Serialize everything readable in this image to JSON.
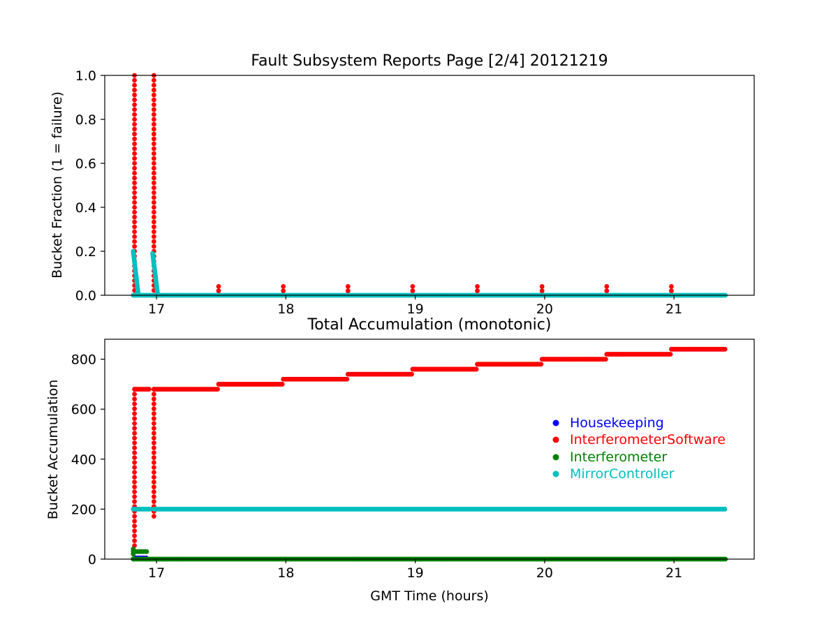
{
  "chart_data": [
    {
      "type": "scatter",
      "title": "Fault Subsystem Reports Page [2/4] 20121219",
      "xlabel": "",
      "ylabel": "Bucket Fraction (1 = failure)",
      "xlim": [
        16.6,
        21.62
      ],
      "ylim": [
        0,
        1.0
      ],
      "x_ticks": [
        17,
        18,
        19,
        20,
        21
      ],
      "y_ticks": [
        0.0,
        0.2,
        0.4,
        0.6,
        0.8,
        1.0
      ],
      "x_tick_labels": [
        "17",
        "18",
        "19",
        "20",
        "21"
      ],
      "y_tick_labels": [
        "0.0",
        "0.2",
        "0.4",
        "0.6",
        "0.8",
        "1.0"
      ],
      "grid": false,
      "series": [
        {
          "name": "InterferometerSoftware",
          "color": "#ff0000",
          "spikes": [
            {
              "x": 16.83,
              "peak": 1.0
            },
            {
              "x": 16.98,
              "peak": 1.0
            }
          ],
          "markers": [
            {
              "x": 17.48,
              "y": 0.04
            },
            {
              "x": 17.98,
              "y": 0.04
            },
            {
              "x": 18.48,
              "y": 0.04
            },
            {
              "x": 18.98,
              "y": 0.04
            },
            {
              "x": 19.48,
              "y": 0.04
            },
            {
              "x": 19.98,
              "y": 0.04
            },
            {
              "x": 20.48,
              "y": 0.04
            },
            {
              "x": 20.98,
              "y": 0.04
            }
          ],
          "baseline": 0.0
        },
        {
          "name": "MirrorController",
          "color": "#00bfbf",
          "decays": [
            {
              "x0": 16.82,
              "x1": 16.86,
              "peak": 0.2
            },
            {
              "x0": 16.97,
              "x1": 17.01,
              "peak": 0.19
            }
          ],
          "baseline_range": [
            16.82,
            21.4
          ],
          "baseline": 0.0
        }
      ]
    },
    {
      "type": "scatter",
      "title": "Total Accumulation (monotonic)",
      "xlabel": "GMT Time (hours)",
      "ylabel": "Bucket Accumulation",
      "xlim": [
        16.6,
        21.62
      ],
      "ylim": [
        0,
        880
      ],
      "x_ticks": [
        17,
        18,
        19,
        20,
        21
      ],
      "y_ticks": [
        0,
        200,
        400,
        600,
        800
      ],
      "x_tick_labels": [
        "17",
        "18",
        "19",
        "20",
        "21"
      ],
      "y_tick_labels": [
        "0",
        "200",
        "400",
        "600",
        "800"
      ],
      "grid": false,
      "legend_position": "center-right",
      "series": [
        {
          "name": "Housekeeping",
          "color": "#0000ff",
          "points": [
            [
              16.84,
              5
            ],
            [
              16.86,
              5
            ],
            [
              16.88,
              5
            ],
            [
              16.9,
              5
            ],
            [
              16.92,
              5
            ]
          ]
        },
        {
          "name": "InterferometerSoftware",
          "color": "#ff0000",
          "steps": [
            {
              "x0": 16.83,
              "x1": 16.95,
              "y": 680
            },
            {
              "x0": 16.98,
              "x1": 17.48,
              "y": 680
            },
            {
              "x0": 17.48,
              "x1": 17.98,
              "y": 700
            },
            {
              "x0": 17.98,
              "x1": 18.48,
              "y": 720
            },
            {
              "x0": 18.48,
              "x1": 18.98,
              "y": 740
            },
            {
              "x0": 18.98,
              "x1": 19.48,
              "y": 760
            },
            {
              "x0": 19.48,
              "x1": 19.98,
              "y": 780
            },
            {
              "x0": 19.98,
              "x1": 20.48,
              "y": 800
            },
            {
              "x0": 20.48,
              "x1": 20.98,
              "y": 820
            },
            {
              "x0": 20.98,
              "x1": 21.4,
              "y": 840
            }
          ],
          "ramps": [
            {
              "x": 16.83,
              "from": 40,
              "to": 680
            },
            {
              "x": 16.98,
              "from": 160,
              "to": 680
            }
          ]
        },
        {
          "name": "Interferometer",
          "color": "#008000",
          "steps": [
            {
              "x0": 16.82,
              "x1": 16.93,
              "y": 30
            },
            {
              "x0": 16.82,
              "x1": 21.4,
              "y": 0
            }
          ],
          "ramps": [
            {
              "x": 16.82,
              "from": 0,
              "to": 40
            }
          ]
        },
        {
          "name": "MirrorController",
          "color": "#00bfbf",
          "steps": [
            {
              "x0": 16.82,
              "x1": 16.95,
              "y": 200
            },
            {
              "x0": 16.98,
              "x1": 21.4,
              "y": 200
            }
          ],
          "ramps": []
        }
      ]
    }
  ]
}
